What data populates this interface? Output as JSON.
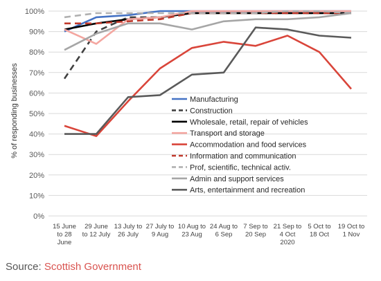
{
  "chart_data": {
    "type": "line",
    "ylabel": "% of responding businesses",
    "ylim": [
      0,
      100
    ],
    "y_ticks": [
      "0%",
      "10%",
      "20%",
      "30%",
      "40%",
      "50%",
      "60%",
      "70%",
      "80%",
      "90%",
      "100%"
    ],
    "y_tick_values": [
      0,
      10,
      20,
      30,
      40,
      50,
      60,
      70,
      80,
      90,
      100
    ],
    "categories": [
      [
        "15 June",
        "to 28",
        "June"
      ],
      [
        "29 June",
        "to 12 July"
      ],
      [
        "13 July to",
        "26 July"
      ],
      [
        "27 July to",
        "9 Aug"
      ],
      [
        "10 Aug to",
        "23 Aug"
      ],
      [
        "24 Aug to",
        "6 Sep"
      ],
      [
        "7 Sep to",
        "20 Sep"
      ],
      [
        "21 Sep to",
        "4 Oct",
        "2020"
      ],
      [
        "5 Oct to",
        "18 Oct"
      ],
      [
        "19 Oct to",
        "1 Nov"
      ]
    ],
    "grid": true,
    "legend_placement": "center-right",
    "series": [
      {
        "name": "Manufacturing",
        "color": "#4472c4",
        "dash": "solid",
        "values": [
          90,
          97,
          98,
          100,
          100,
          100,
          100,
          100,
          100,
          100
        ]
      },
      {
        "name": "Construction",
        "color": "#404040",
        "dash": "dashed",
        "values": [
          67,
          90,
          97,
          97,
          99,
          99,
          99,
          99,
          99,
          99
        ]
      },
      {
        "name": "Wholesale, retail, repair of vehicles",
        "color": "#000000",
        "dash": "solid",
        "values": [
          91,
          94,
          96,
          97,
          99,
          99,
          99,
          99,
          99,
          99
        ]
      },
      {
        "name": "Transport and storage",
        "color": "#f4a6a0",
        "dash": "solid",
        "values": [
          91,
          84,
          96,
          97,
          100,
          100,
          100,
          100,
          100,
          100
        ]
      },
      {
        "name": "Accommodation and food services",
        "color": "#d9453a",
        "dash": "solid",
        "values": [
          44,
          39,
          56,
          72,
          82,
          85,
          83,
          88,
          80,
          62
        ]
      },
      {
        "name": "Information and communication",
        "color": "#c0392b",
        "dash": "dashed",
        "values": [
          94,
          94,
          95,
          96,
          99,
          99,
          99,
          99,
          99,
          99
        ]
      },
      {
        "name": "Prof, scientific, technical activ.",
        "color": "#b0b0b0",
        "dash": "dashed",
        "values": [
          97,
          99,
          99,
          99,
          99,
          99,
          99,
          100,
          100,
          99
        ]
      },
      {
        "name": "Admin and support services",
        "color": "#a6a6a6",
        "dash": "solid",
        "values": [
          81,
          89,
          94,
          94,
          91,
          95,
          96,
          96,
          97,
          99
        ]
      },
      {
        "name": "Arts, entertainment and recreation",
        "color": "#5a5a5a",
        "dash": "solid",
        "values": [
          40,
          40,
          58,
          59,
          69,
          70,
          92,
          91,
          88,
          87
        ]
      }
    ]
  },
  "source": {
    "label": "Source: ",
    "link_text": "Scottish Government"
  }
}
